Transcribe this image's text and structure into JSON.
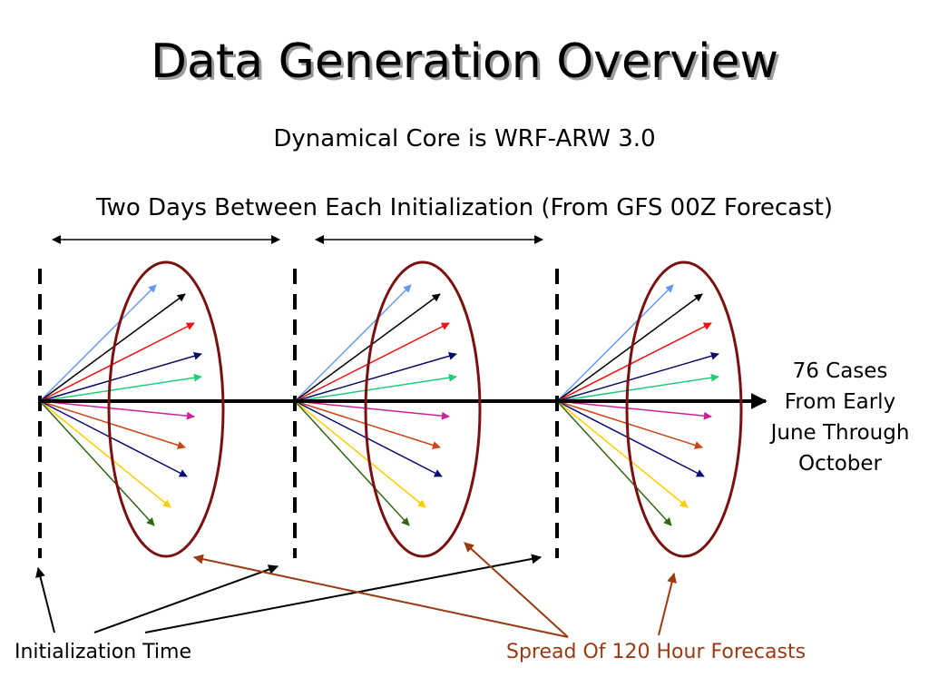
{
  "title": "Data Generation Overview",
  "subtitle": "Dynamical Core is WRF-ARW 3.0",
  "spacing_note": "Two Days Between Each Initialization (From GFS 00Z Forecast)",
  "cases_lines": [
    "76 Cases",
    "From Early",
    "June Through",
    "October"
  ],
  "label_init": "Initialization Time",
  "label_spread": "Spread Of 120 Hour Forecasts",
  "colors": {
    "timeline": "#000000",
    "ellipse": "#7a1010",
    "spread_pointer": "#9a3a12",
    "forecast_arrows": [
      "#6699ee",
      "#000000",
      "#ee1111",
      "#0a0a6a",
      "#22cc77",
      "#cc2299",
      "#cc4411",
      "#0a0a77",
      "#ffcc00",
      "#336611"
    ]
  }
}
